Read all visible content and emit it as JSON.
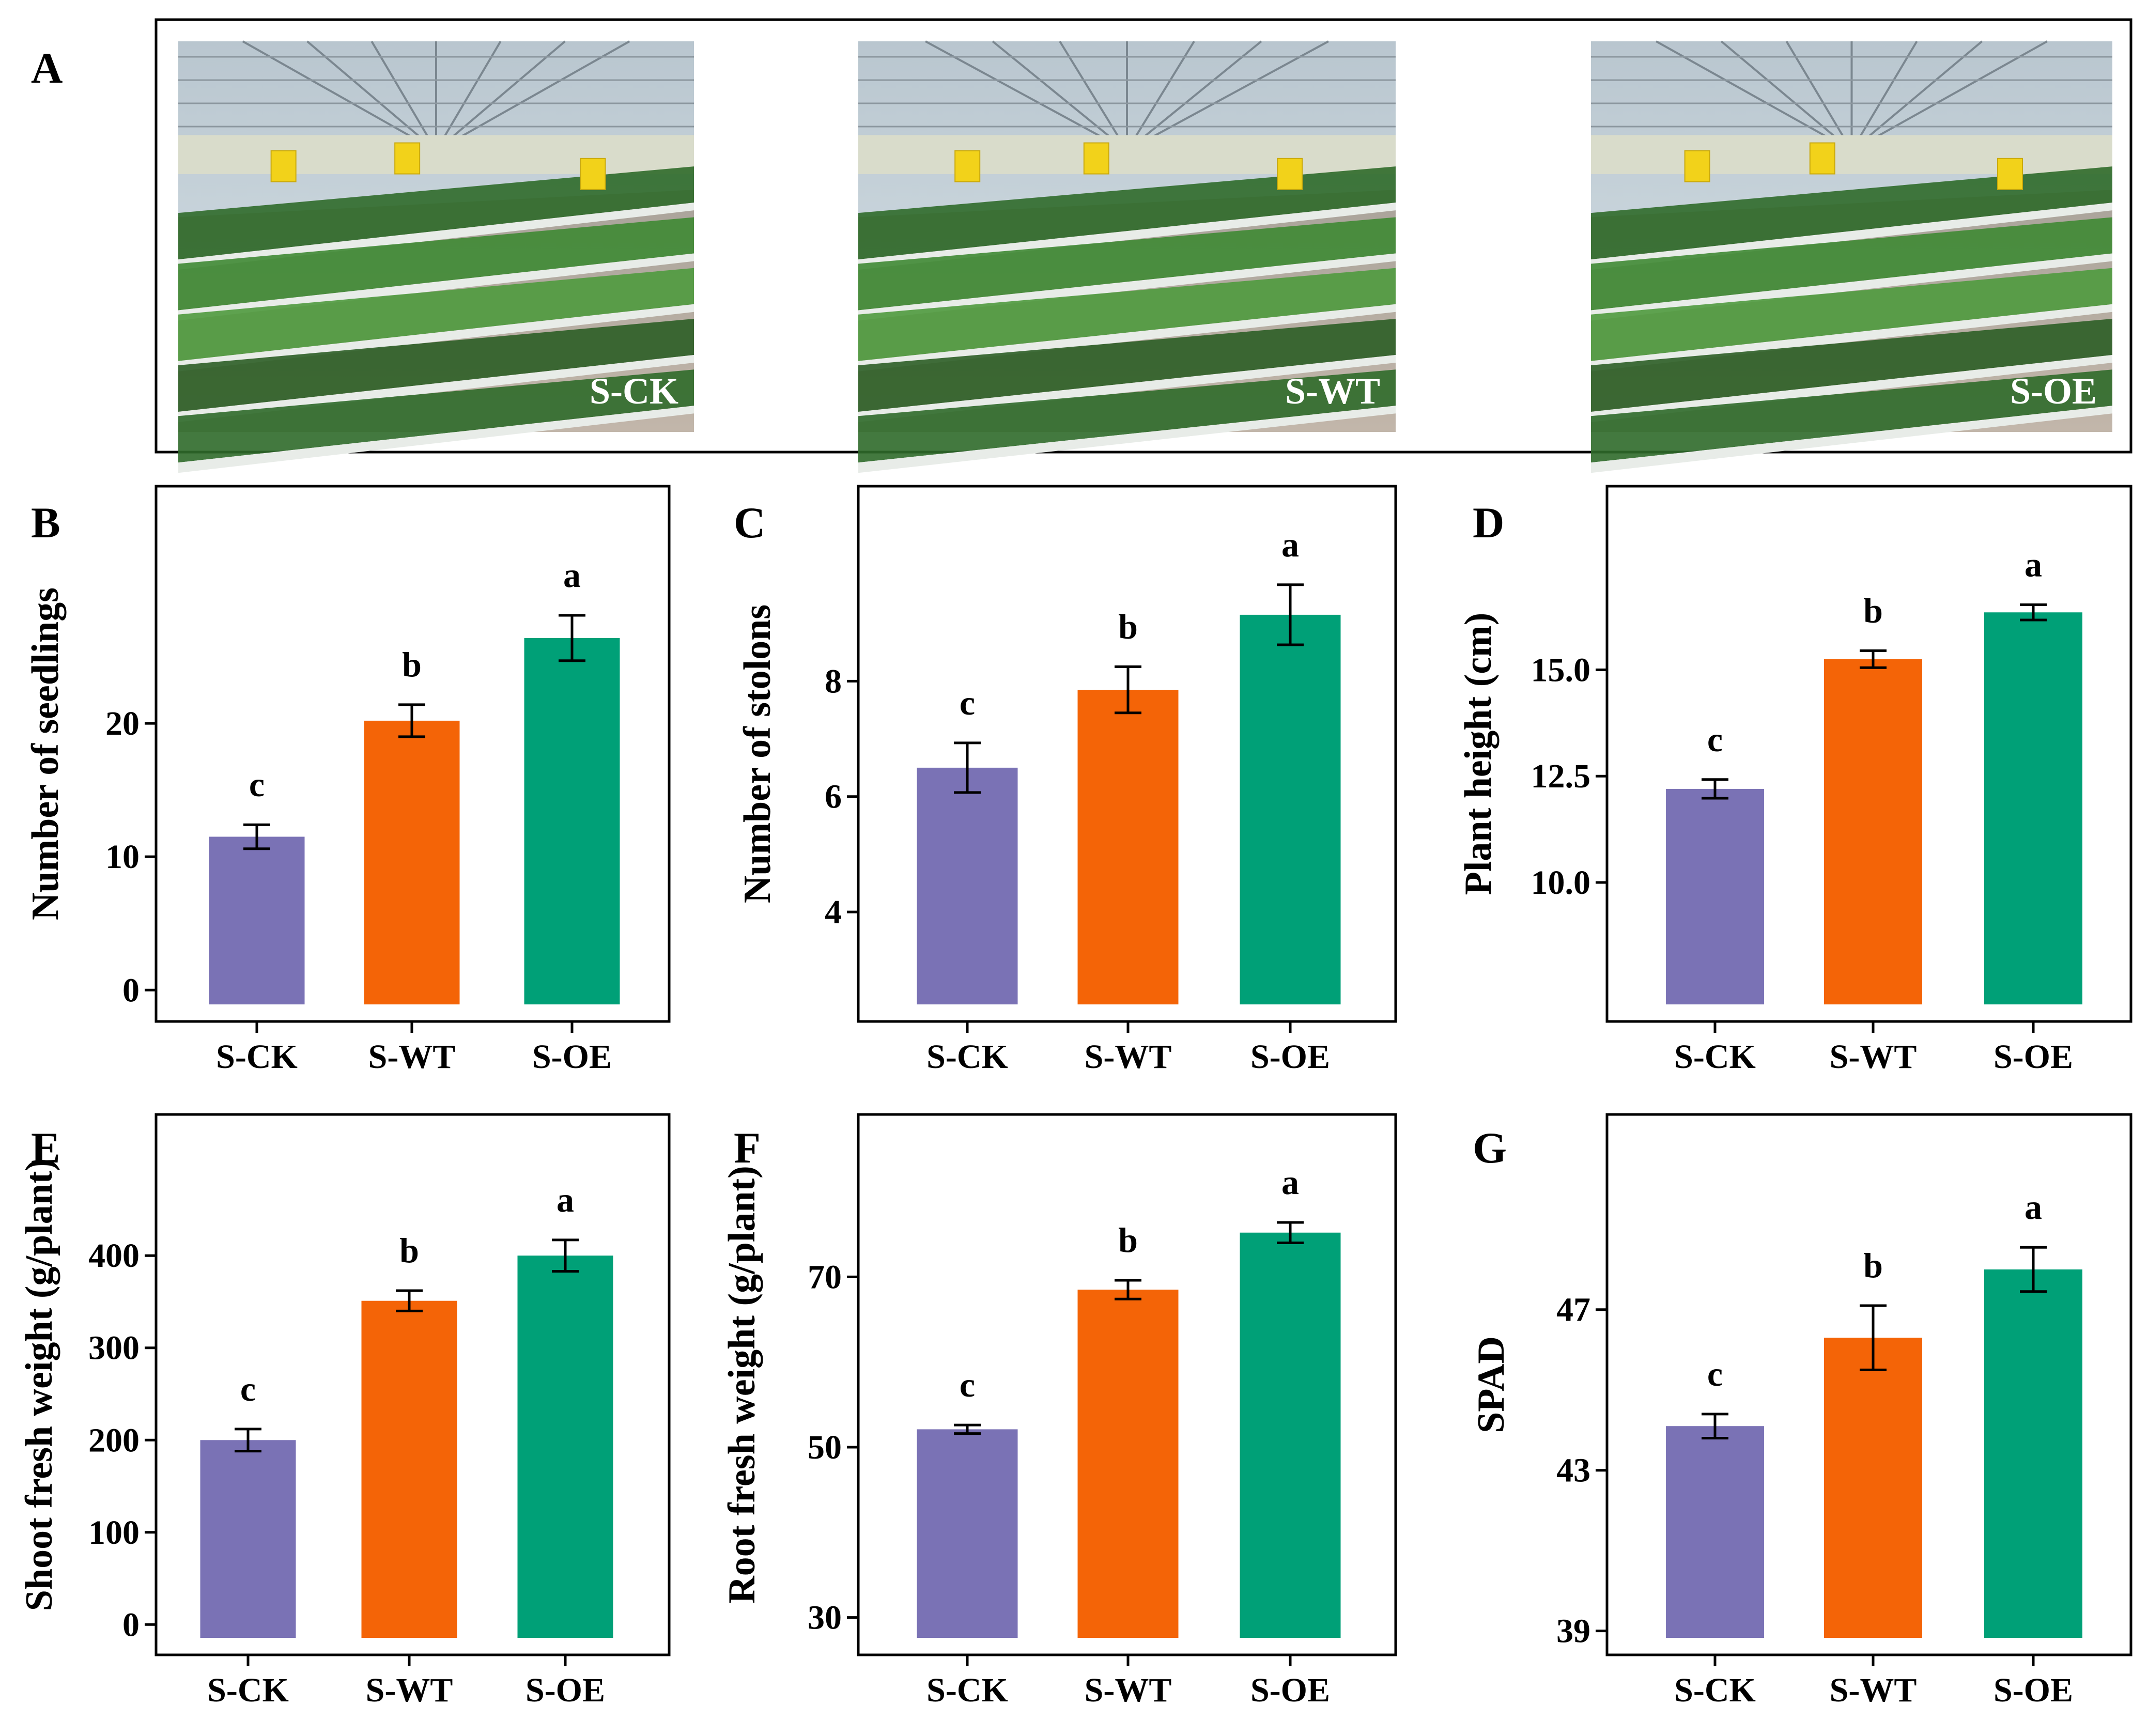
{
  "panel_a": {
    "letter": "A",
    "photos": [
      {
        "label": "S-CK"
      },
      {
        "label": "S-WT"
      },
      {
        "label": "S-OE"
      }
    ]
  },
  "colors": {
    "S-CK": "#7a72b5",
    "S-WT": "#f46407",
    "S-OE": "#00a077"
  },
  "chart_data": [
    {
      "panel": "B",
      "type": "bar",
      "categories": [
        "S-CK",
        "S-WT",
        "S-OE"
      ],
      "values": [
        11.5,
        20.2,
        26.4
      ],
      "errors": [
        0.9,
        1.2,
        1.7
      ],
      "sig_letters": [
        "c",
        "b",
        "a"
      ],
      "ylabel": "Number of seedlings",
      "yticks": [
        0,
        10,
        20
      ],
      "ylim": [
        -1.5,
        35.5
      ],
      "ytick_format": "0"
    },
    {
      "panel": "C",
      "type": "bar",
      "categories": [
        "S-CK",
        "S-WT",
        "S-OE"
      ],
      "values": [
        6.5,
        7.85,
        9.15
      ],
      "errors": [
        0.43,
        0.4,
        0.52
      ],
      "sig_letters": [
        "c",
        "b",
        "a"
      ],
      "ylabel": "Number of stolons",
      "yticks": [
        4,
        6,
        8
      ],
      "ylim": [
        2.3,
        10.85
      ],
      "ytick_format": "0"
    },
    {
      "panel": "D",
      "type": "bar",
      "categories": [
        "S-CK",
        "S-WT",
        "S-OE"
      ],
      "values": [
        12.2,
        15.25,
        16.35
      ],
      "errors": [
        0.22,
        0.2,
        0.18
      ],
      "sig_letters": [
        "c",
        "b",
        "a"
      ],
      "ylabel": "Plant height (cm)",
      "yticks": [
        10.0,
        12.5,
        15.0
      ],
      "ylim": [
        7.0,
        18.6
      ],
      "ytick_format": "0.0"
    },
    {
      "panel": "E",
      "type": "bar",
      "categories": [
        "S-CK",
        "S-WT",
        "S-OE"
      ],
      "values": [
        200,
        351,
        400
      ],
      "errors": [
        12,
        11,
        17
      ],
      "sig_letters": [
        "c",
        "b",
        "a"
      ],
      "ylabel": "Shoot fresh weight (g/plant)",
      "yticks": [
        0,
        100,
        200,
        300,
        400
      ],
      "ylim": [
        -20,
        520
      ],
      "ytick_format": "0"
    },
    {
      "panel": "F",
      "type": "bar",
      "categories": [
        "S-CK",
        "S-WT",
        "S-OE"
      ],
      "values": [
        52.1,
        68.5,
        75.2
      ],
      "errors": [
        0.5,
        1.1,
        1.2
      ],
      "sig_letters": [
        "c",
        "b",
        "a"
      ],
      "ylabel": "Root fresh weight (g/plant)",
      "yticks": [
        30,
        50,
        70
      ],
      "ylim": [
        27,
        85.5
      ],
      "ytick_format": "0"
    },
    {
      "panel": "G",
      "type": "bar",
      "categories": [
        "S-CK",
        "S-WT",
        "S-OE"
      ],
      "values": [
        44.1,
        46.3,
        48.0
      ],
      "errors": [
        0.3,
        0.8,
        0.55
      ],
      "sig_letters": [
        "c",
        "b",
        "a"
      ],
      "ylabel": "SPAD",
      "yticks": [
        39,
        43,
        47
      ],
      "ylim": [
        38.7,
        51.1
      ],
      "ytick_format": "0"
    }
  ]
}
